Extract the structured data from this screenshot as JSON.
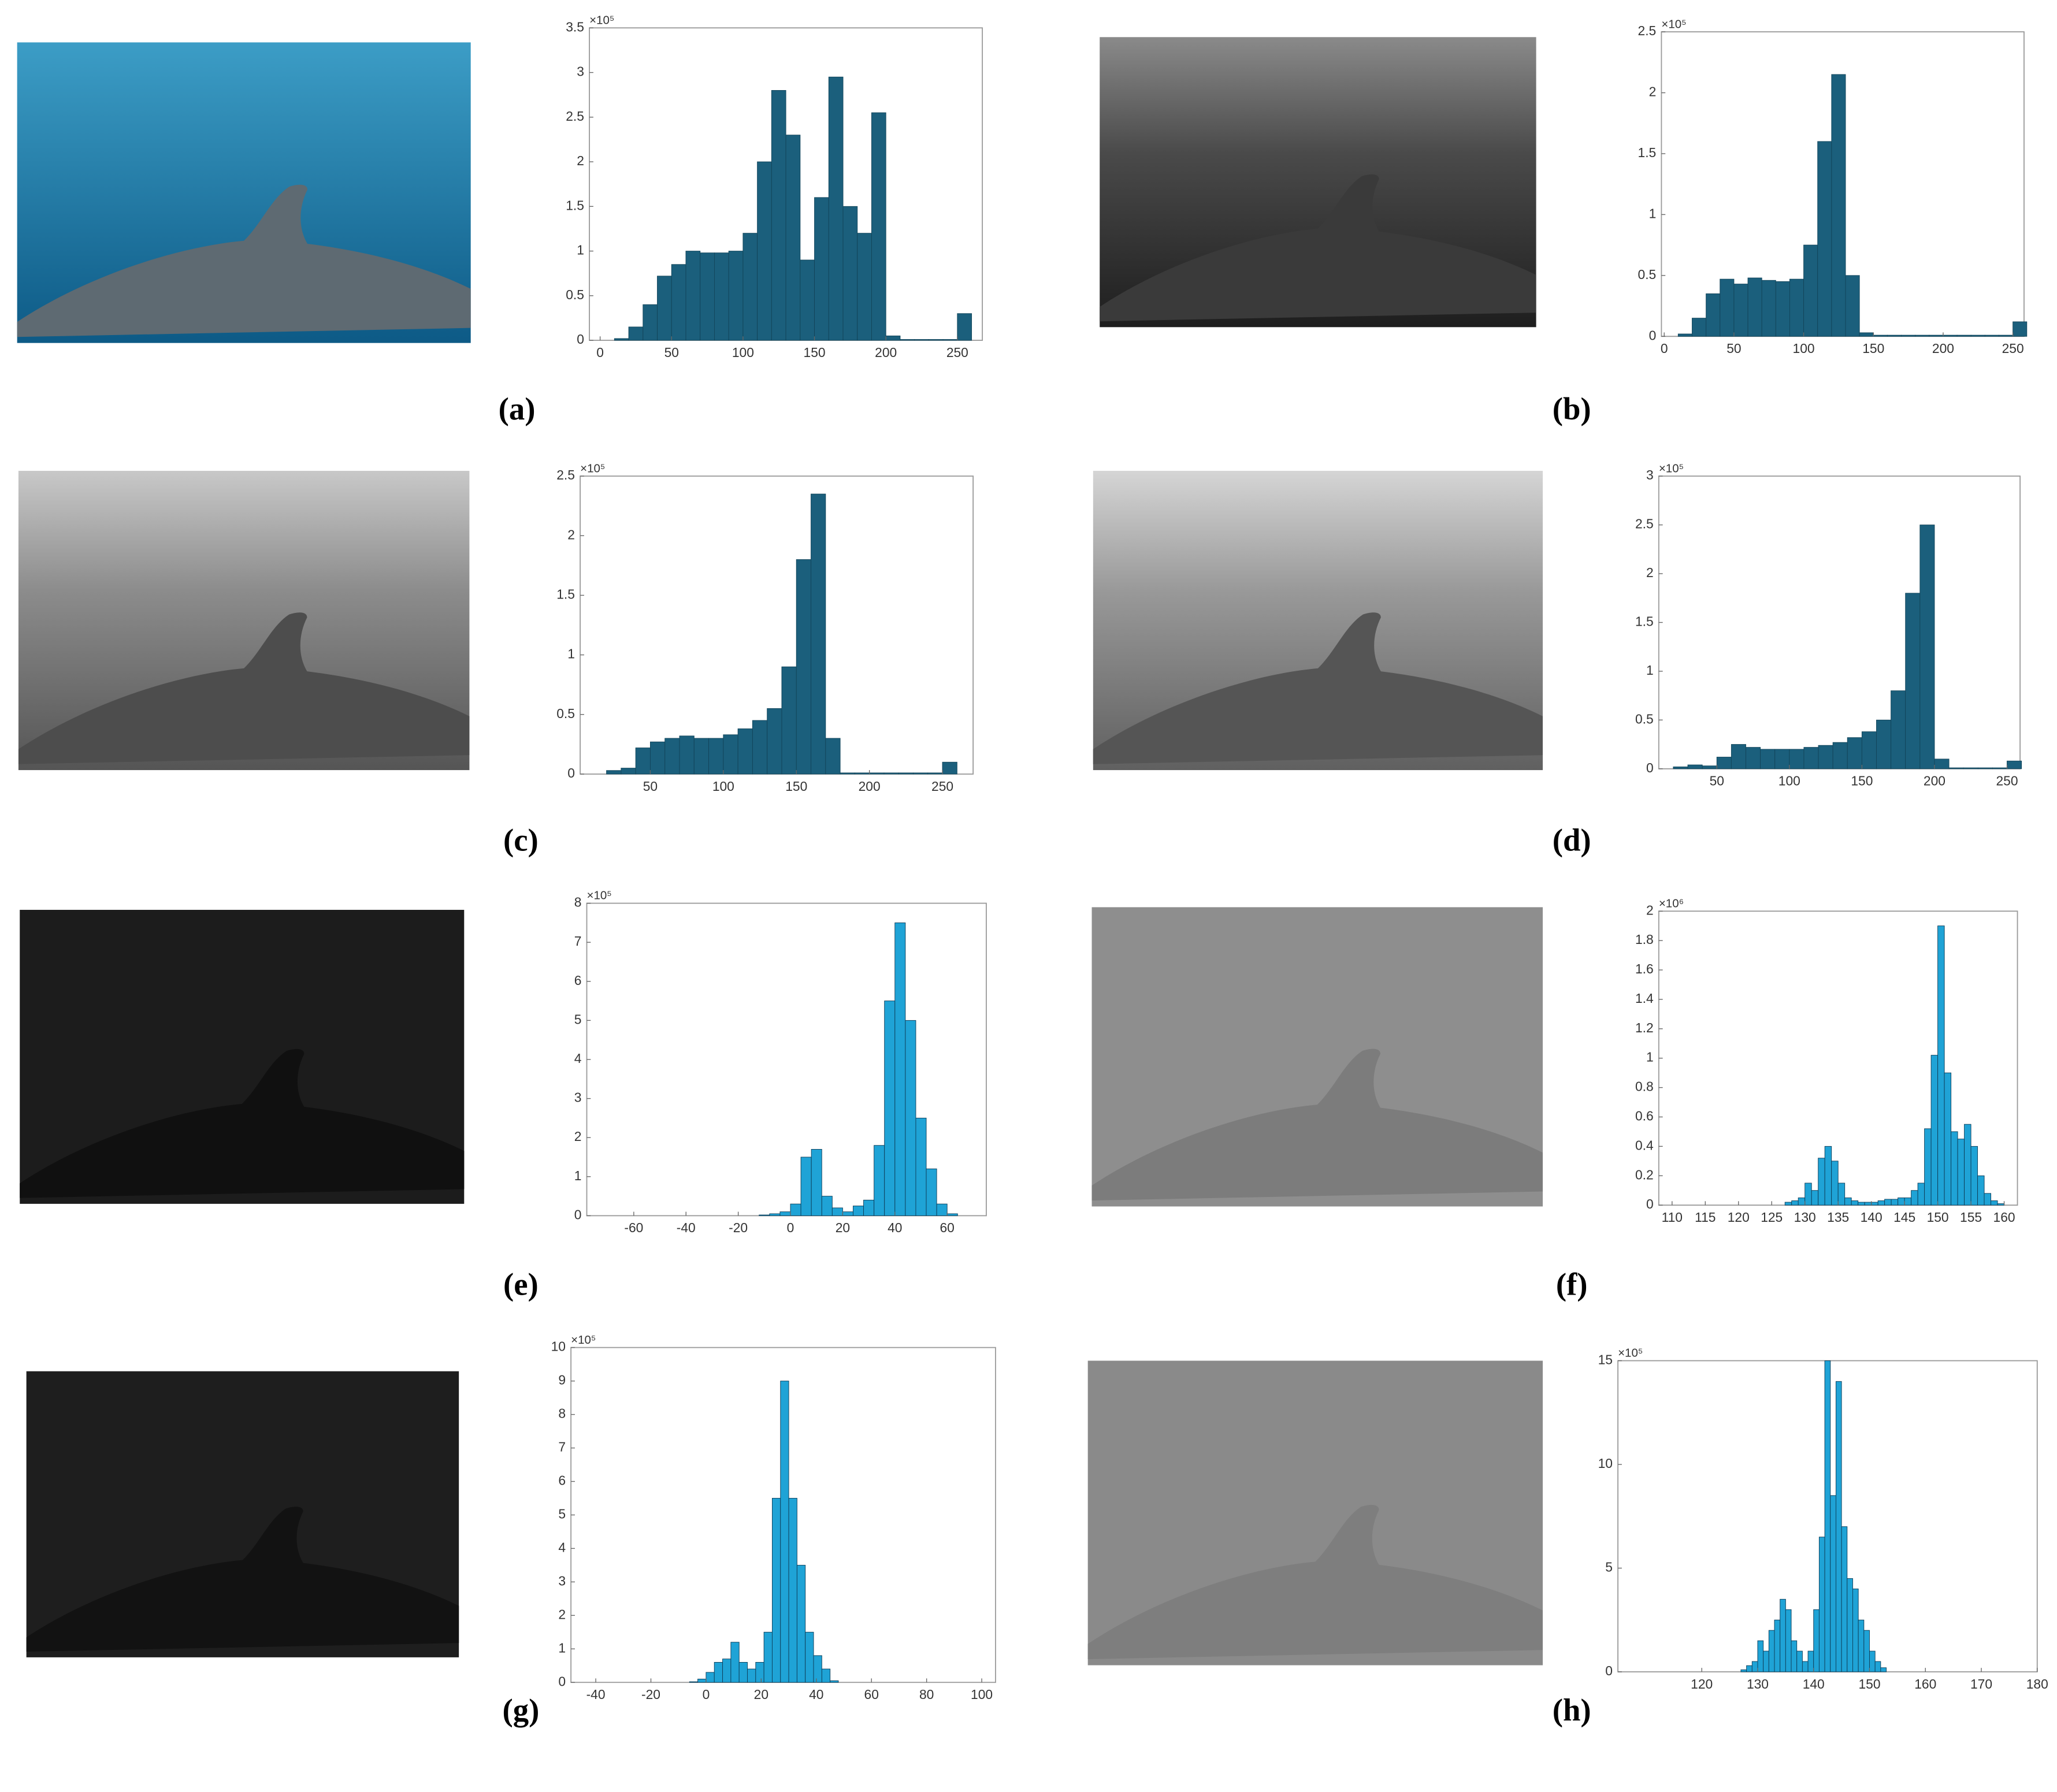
{
  "chart_data": [
    {
      "type": "histogram",
      "label": "(a)",
      "y_scale_label": "×10⁵",
      "color": "#1b5f7c",
      "edge_color": "#124459",
      "bins": [
        0,
        10,
        20,
        30,
        40,
        50,
        60,
        70,
        80,
        90,
        100,
        110,
        120,
        130,
        140,
        150,
        160,
        170,
        180,
        190,
        200,
        210,
        220,
        230,
        240,
        250,
        260
      ],
      "counts": [
        0,
        0.02,
        0.15,
        0.4,
        0.72,
        0.85,
        1.0,
        0.98,
        0.98,
        1.0,
        1.2,
        2.0,
        2.8,
        2.3,
        0.9,
        1.6,
        2.95,
        1.5,
        1.2,
        2.55,
        0.05,
        0.01,
        0.01,
        0.01,
        0.01,
        0.3
      ],
      "xlim": [
        -7.5,
        267.5
      ],
      "ylim": [
        0,
        3.5
      ],
      "xticks": [
        0,
        50,
        100,
        150,
        200,
        250
      ],
      "yticks": [
        0,
        0.5,
        1,
        1.5,
        2,
        2.5,
        3,
        3.5
      ]
    },
    {
      "type": "histogram",
      "label": "(b)",
      "y_scale_label": "×10⁵",
      "color": "#1b5f7c",
      "edge_color": "#124459",
      "bins": [
        0,
        10,
        20,
        30,
        40,
        50,
        60,
        70,
        80,
        90,
        100,
        110,
        120,
        130,
        140,
        150,
        160,
        170,
        180,
        190,
        200,
        210,
        220,
        230,
        240,
        250,
        260
      ],
      "counts": [
        0,
        0.02,
        0.15,
        0.35,
        0.47,
        0.43,
        0.48,
        0.46,
        0.45,
        0.47,
        0.75,
        1.6,
        2.15,
        0.5,
        0.03,
        0.01,
        0.01,
        0.01,
        0.01,
        0.01,
        0.01,
        0.01,
        0.01,
        0.01,
        0.01,
        0.12
      ],
      "xlim": [
        -2,
        258
      ],
      "ylim": [
        0,
        2.5
      ],
      "xticks": [
        0,
        50,
        100,
        150,
        200,
        250
      ],
      "yticks": [
        0,
        0.5,
        1,
        1.5,
        2,
        2.5
      ]
    },
    {
      "type": "histogram",
      "label": "(c)",
      "y_scale_label": "×10⁵",
      "color": "#1b5f7c",
      "edge_color": "#124459",
      "bins": [
        0,
        10,
        20,
        30,
        40,
        50,
        60,
        70,
        80,
        90,
        100,
        110,
        120,
        130,
        140,
        150,
        160,
        170,
        180,
        190,
        200,
        210,
        220,
        230,
        240,
        250,
        260
      ],
      "counts": [
        0,
        0,
        0.03,
        0.05,
        0.22,
        0.27,
        0.3,
        0.32,
        0.3,
        0.3,
        0.33,
        0.38,
        0.45,
        0.55,
        0.9,
        1.8,
        2.35,
        0.3,
        0.01,
        0.01,
        0.01,
        0.01,
        0.01,
        0.01,
        0.01,
        0.1
      ],
      "xlim": [
        2,
        271
      ],
      "ylim": [
        0,
        2.5
      ],
      "xticks": [
        50,
        100,
        150,
        200,
        250
      ],
      "yticks": [
        0,
        0.5,
        1,
        1.5,
        2,
        2.5
      ]
    },
    {
      "type": "histogram",
      "label": "(d)",
      "y_scale_label": "×10⁵",
      "color": "#1b5f7c",
      "edge_color": "#124459",
      "bins": [
        20,
        30,
        40,
        50,
        60,
        70,
        80,
        90,
        100,
        110,
        120,
        130,
        140,
        150,
        160,
        170,
        180,
        190,
        200,
        210,
        220,
        230,
        240,
        250,
        260
      ],
      "counts": [
        0.02,
        0.04,
        0.03,
        0.12,
        0.25,
        0.22,
        0.2,
        0.2,
        0.2,
        0.22,
        0.24,
        0.27,
        0.32,
        0.38,
        0.5,
        0.8,
        1.8,
        2.5,
        0.1,
        0.01,
        0.01,
        0.01,
        0.01,
        0.08
      ],
      "xlim": [
        10,
        259
      ],
      "ylim": [
        0,
        3
      ],
      "xticks": [
        50,
        100,
        150,
        200,
        250
      ],
      "yticks": [
        0,
        0.5,
        1,
        1.5,
        2,
        2.5,
        3
      ]
    },
    {
      "type": "histogram",
      "label": "(e)",
      "y_scale_label": "×10⁵",
      "color": "#1fa3d6",
      "edge_color": "#0d3c57",
      "bins": [
        -12,
        -8,
        -4,
        0,
        4,
        8,
        12,
        16,
        20,
        24,
        28,
        32,
        36,
        40,
        44,
        48,
        52,
        56,
        60,
        64
      ],
      "counts": [
        0.02,
        0.05,
        0.1,
        0.3,
        1.5,
        1.7,
        0.5,
        0.2,
        0.1,
        0.25,
        0.4,
        1.8,
        5.5,
        7.5,
        5.0,
        2.5,
        1.2,
        0.3,
        0.05
      ],
      "xlim": [
        -78,
        75
      ],
      "ylim": [
        0,
        8
      ],
      "xticks": [
        -60,
        -40,
        -20,
        0,
        20,
        40,
        60
      ],
      "yticks": [
        0,
        1,
        2,
        3,
        4,
        5,
        6,
        7,
        8
      ]
    },
    {
      "type": "histogram",
      "label": "(f)",
      "y_scale_label": "×10⁶",
      "color": "#1fa3d6",
      "edge_color": "#0d3c57",
      "bins": [
        127,
        128,
        129,
        130,
        131,
        132,
        133,
        134,
        135,
        136,
        137,
        138,
        139,
        140,
        141,
        142,
        143,
        144,
        145,
        146,
        147,
        148,
        149,
        150,
        151,
        152,
        153,
        154,
        155,
        156,
        157,
        158,
        159,
        160
      ],
      "counts": [
        0.02,
        0.03,
        0.05,
        0.15,
        0.1,
        0.32,
        0.4,
        0.3,
        0.15,
        0.05,
        0.03,
        0.02,
        0.02,
        0.02,
        0.03,
        0.04,
        0.04,
        0.05,
        0.05,
        0.1,
        0.15,
        0.52,
        1.02,
        1.9,
        0.9,
        0.5,
        0.45,
        0.55,
        0.4,
        0.2,
        0.08,
        0.03,
        0.01
      ],
      "xlim": [
        108,
        162
      ],
      "ylim": [
        0,
        2
      ],
      "xticks": [
        110,
        115,
        120,
        125,
        130,
        135,
        140,
        145,
        150,
        155,
        160
      ],
      "yticks": [
        0,
        0.2,
        0.4,
        0.6,
        0.8,
        1,
        1.2,
        1.4,
        1.6,
        1.8,
        2
      ]
    },
    {
      "type": "histogram",
      "label": "(g)",
      "y_scale_label": "×10⁵",
      "color": "#1fa3d6",
      "edge_color": "#0d3c57",
      "bins": [
        -6,
        -3,
        0,
        3,
        6,
        9,
        12,
        15,
        18,
        21,
        24,
        27,
        30,
        33,
        36,
        39,
        42,
        45,
        48
      ],
      "counts": [
        0.02,
        0.1,
        0.3,
        0.6,
        0.7,
        1.2,
        0.6,
        0.4,
        0.6,
        1.5,
        5.5,
        9.0,
        5.5,
        3.5,
        1.5,
        0.8,
        0.4,
        0.05
      ],
      "xlim": [
        -49,
        105
      ],
      "ylim": [
        0,
        10
      ],
      "xticks": [
        -40,
        -20,
        0,
        20,
        40,
        60,
        80,
        100
      ],
      "yticks": [
        0,
        1,
        2,
        3,
        4,
        5,
        6,
        7,
        8,
        9,
        10
      ]
    },
    {
      "type": "histogram",
      "label": "(h)",
      "y_scale_label": "×10⁵",
      "color": "#1fa3d6",
      "edge_color": "#0d3c57",
      "bins": [
        127,
        128,
        129,
        130,
        131,
        132,
        133,
        134,
        135,
        136,
        137,
        138,
        139,
        140,
        141,
        142,
        143,
        144,
        145,
        146,
        147,
        148,
        149,
        150,
        151,
        152,
        153
      ],
      "counts": [
        0.1,
        0.3,
        0.5,
        1.5,
        1.0,
        2.0,
        2.5,
        3.5,
        3.0,
        1.5,
        1.0,
        0.5,
        1.0,
        3.0,
        6.5,
        15,
        8.5,
        14,
        7.0,
        4.5,
        4.0,
        2.5,
        2.0,
        1.0,
        0.5,
        0.2
      ],
      "xlim": [
        105,
        180
      ],
      "ylim": [
        0,
        15
      ],
      "xticks": [
        120,
        130,
        140,
        150,
        160,
        170,
        180
      ],
      "yticks": [
        0,
        5,
        10,
        15
      ]
    }
  ]
}
